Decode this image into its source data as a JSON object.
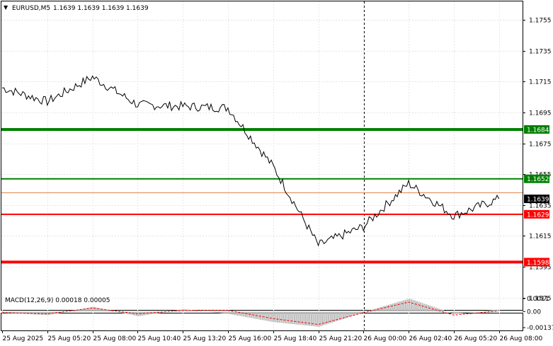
{
  "header": {
    "symbol": "EURUSD,M5",
    "ohlc": "1.1639 1.1639 1.1639 1.1639"
  },
  "chart_data": [
    {
      "type": "line",
      "title": "EURUSD,M5",
      "ylim": [
        1.1567,
        1.1767
      ],
      "y_ticks": [
        "1.1755",
        "1.1735",
        "1.1715",
        "1.1695",
        "1.1675",
        "1.1655",
        "1.1635",
        "1.1615",
        "1.1595",
        "1.1575"
      ],
      "x_ticks": [
        "25 Aug 2025",
        "25 Aug 05:20",
        "25 Aug 08:00",
        "25 Aug 10:40",
        "25 Aug 13:20",
        "25 Aug 16:00",
        "25 Aug 18:40",
        "25 Aug 21:20",
        "26 Aug 00:00",
        "26 Aug 02:40",
        "26 Aug 05:20",
        "26 Aug 08:00"
      ],
      "levels": [
        {
          "value": "1.1684",
          "color": "#008000"
        },
        {
          "value": "1.1652",
          "color": "#008000"
        },
        {
          "value": "1.1629",
          "color": "#ff0000"
        },
        {
          "value": "1.1598",
          "color": "#ff0000"
        }
      ],
      "ask_line": {
        "value": "1.1643",
        "color": "#e08040"
      },
      "current_price": "1.1639",
      "series": [
        {
          "values": [
            {
              "x": "25 Aug 2025",
              "y": 1.1711
            },
            {
              "x": "25 Aug 05:20",
              "y": 1.1702
            },
            {
              "x": "25 Aug 08:00",
              "y": 1.1718
            },
            {
              "x": "25 Aug 10:40",
              "y": 1.17
            },
            {
              "x": "25 Aug 13:20",
              "y": 1.1699
            },
            {
              "x": "25 Aug 16:00",
              "y": 1.1698
            },
            {
              "x": "25 Aug 18:40",
              "y": 1.166
            },
            {
              "x": "25 Aug 21:20",
              "y": 1.1609
            },
            {
              "x": "26 Aug 00:00",
              "y": 1.1621
            },
            {
              "x": "26 Aug 02:40",
              "y": 1.1649
            },
            {
              "x": "26 Aug 05:20",
              "y": 1.1628
            },
            {
              "x": "26 Aug 08:00",
              "y": 1.1639
            }
          ]
        }
      ]
    },
    {
      "type": "area",
      "title": "MACD(12,26,9) 0.00018 0.00005",
      "ylim": [
        -0.00137,
        0.0011
      ],
      "y_ticks": [
        "0.0011",
        "0.00",
        "-0.00137"
      ],
      "series": [
        {
          "name": "MACD",
          "values": [
            -0.0001,
            -0.0003,
            0.0004,
            -0.0004,
            0.0002,
            -0.0002,
            -0.0009,
            -0.0013,
            -5e-05,
            0.0011,
            -0.0002,
            0.00018
          ]
        },
        {
          "name": "Signal",
          "values": [
            -0.0001,
            -0.0002,
            0.0003,
            -0.0002,
            0.0001,
            0.0001,
            -0.0006,
            -0.0011,
            -0.0001,
            0.0008,
            -0.0003,
            5e-05
          ]
        }
      ]
    }
  ],
  "colors": {
    "line": "#000000",
    "macd_hist": "#c0c0c0",
    "signal": "#ff0000",
    "vline": "#000000"
  }
}
